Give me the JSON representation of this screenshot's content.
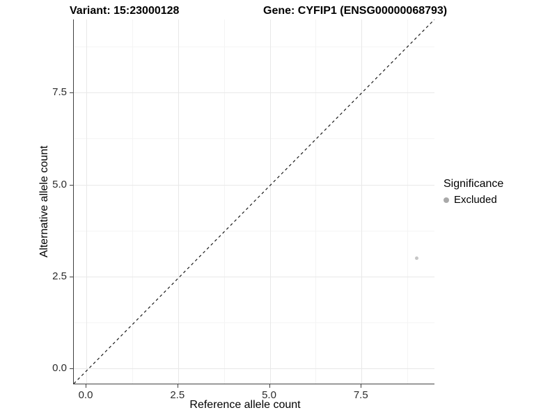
{
  "titles": {
    "variant": "Variant: 15:23000128",
    "gene": "Gene: CYFIP1 (ENSG00000068793)"
  },
  "chart_data": {
    "type": "scatter",
    "title": "Variant: 15:23000128   Gene: CYFIP1 (ENSG00000068793)",
    "xlabel": "Reference allele count",
    "ylabel": "Alternative allele count",
    "xlim": [
      -0.35,
      9.5
    ],
    "ylim": [
      -0.42,
      9.5
    ],
    "x_ticks": [
      0.0,
      2.5,
      5.0,
      7.5
    ],
    "y_ticks": [
      0.0,
      2.5,
      5.0,
      7.5
    ],
    "x_tick_labels": [
      "0.0",
      "2.5",
      "5.0",
      "7.5"
    ],
    "y_tick_labels": [
      "0.0",
      "2.5",
      "5.0",
      "7.5"
    ],
    "minor_gridlines": [
      1.25,
      3.75,
      6.25,
      8.75
    ],
    "grid": true,
    "series": [
      {
        "name": "Excluded",
        "color": "#c6c6c6",
        "points": [
          {
            "x": 9,
            "y": 3
          }
        ]
      }
    ],
    "reference_line": {
      "type": "identity y=x",
      "style": "dashed",
      "color": "#1a1a1a"
    },
    "legend": {
      "title": "Significance",
      "position": "right",
      "items": [
        {
          "label": "Excluded",
          "color": "#a9a9a9"
        }
      ]
    }
  }
}
